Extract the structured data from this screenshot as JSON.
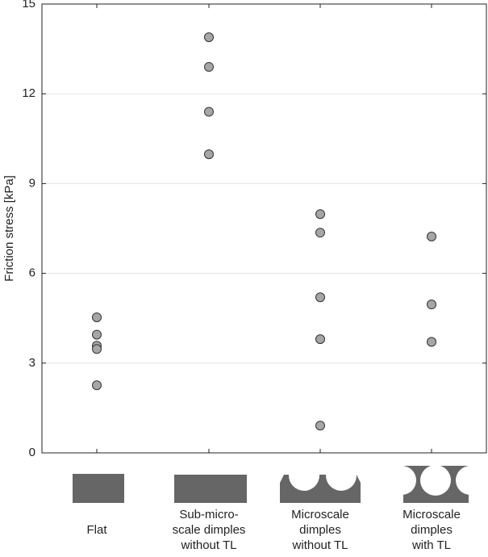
{
  "chart_data": {
    "type": "strip",
    "ylabel": "Friction stress [kPa]",
    "categories": [
      [
        "Flat"
      ],
      [
        "Sub-micro-",
        "scale dimples",
        "without TL"
      ],
      [
        "Microscale",
        "dimples",
        "without TL"
      ],
      [
        "Microscale",
        "dimples",
        "with TL"
      ]
    ],
    "values": [
      [
        4.53,
        3.95,
        3.58,
        3.47,
        2.26
      ],
      [
        13.89,
        12.9,
        11.4,
        9.98
      ],
      [
        7.98,
        7.36,
        5.2,
        3.8,
        0.91
      ],
      [
        7.23,
        4.96,
        3.71
      ]
    ],
    "color": "#a6a6a6",
    "ylim": [
      0,
      15
    ],
    "yticks": [
      0,
      3,
      6,
      9,
      12,
      15
    ],
    "grid": true
  }
}
